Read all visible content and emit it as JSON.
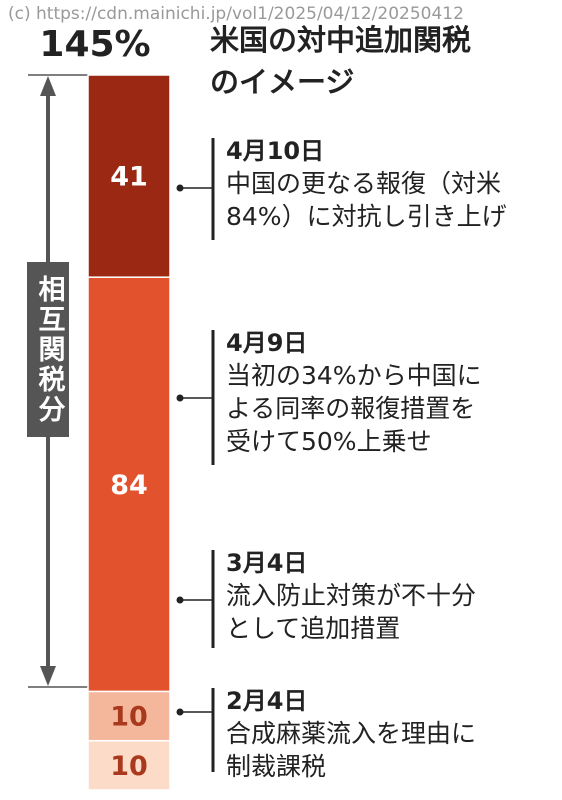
{
  "chart_data": {
    "type": "bar",
    "stacked": true,
    "watermark": "(c) https://cdn.mainichi.jp/vol1/2025/04/12/20250412",
    "title_lines": [
      "米国の対中追加関税",
      "のイメージ"
    ],
    "total_label": "145%",
    "bracket_label": "相互関税分",
    "values": [
      10,
      10,
      84,
      41
    ],
    "colors": [
      "#fcdcc8",
      "#f4b79c",
      "#e2522c",
      "#9a2812"
    ],
    "annotations": [
      {
        "date": "2月4日",
        "lines": [
          "合成麻薬流入を理由に",
          "制裁課税"
        ]
      },
      {
        "date": "3月4日",
        "lines": [
          "流入防止対策が不十分",
          "として追加措置"
        ]
      },
      {
        "date": "4月9日",
        "lines": [
          "当初の34%から中国に",
          "よる同率の報復措置を",
          "受けて50%上乗せ"
        ]
      },
      {
        "date": "4月10日",
        "lines": [
          "中国の更なる報復（対米",
          "84%）に対抗し引き上げ"
        ]
      }
    ]
  }
}
